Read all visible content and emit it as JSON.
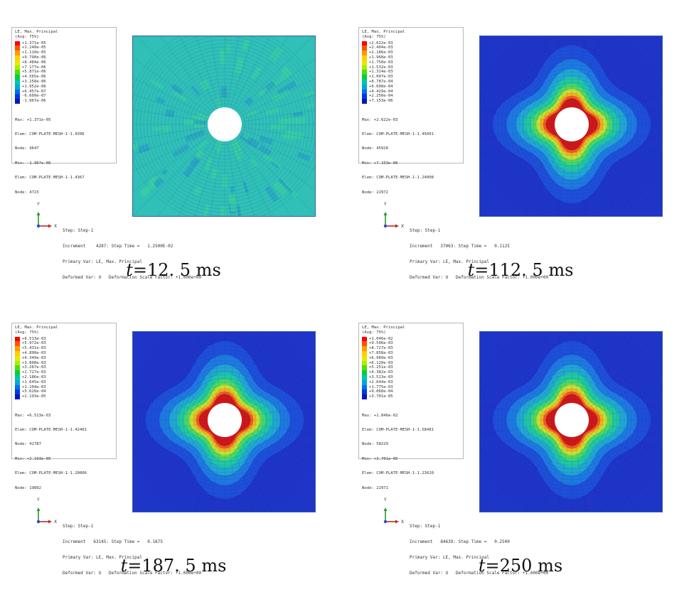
{
  "colors": {
    "scale": [
      "#ff0000",
      "#ff5200",
      "#ff9a00",
      "#ffd000",
      "#e8e800",
      "#a5f000",
      "#50e000",
      "#00d040",
      "#00c8a0",
      "#00a8d8",
      "#0070f0",
      "#0038e0",
      "#0018c0"
    ],
    "plate_deep_blue": "#1e35c8",
    "mesh_line": "#0b1a6e",
    "cyan_field": "#30c0b8"
  },
  "triad": {
    "y_label": "Y",
    "x_label": "X"
  },
  "panels": [
    {
      "legend_title": "LE, Max. Principal",
      "legend_avg": "(Avg: 75%)",
      "scale_labels": [
        "+1.371e-05",
        "+1.240e-05",
        "+1.110e-05",
        "+9.790e-06",
        "+8.484e-06",
        "+7.177e-06",
        "+5.871e-06",
        "+4.565e-06",
        "+3.258e-06",
        "+1.952e-06",
        "+6.457e-07",
        "-6.609e-07",
        "-1.967e-06"
      ],
      "max_line": "Max: +1.371e-05",
      "max_elem": "Elem: COM-PLATE-MESH-1-1.9396",
      "max_node": "Node: 9647",
      "min_line": "Min: -1.967e-06",
      "min_elem": "Elem: COM-PLATE-MESH-1-1.4367",
      "min_node": "Node: 4723",
      "step_line": "Step: Step-1",
      "increment_line": "Increment    4287: Step Time =   1.2500E-02",
      "primary_var": "Primary Var: LE, Max. Principal",
      "deformed_var": "Deformed Var: U   Deformation Scale Factor: +1.000e+00",
      "caption_t": "t",
      "caption_rest": "=12. 5 ms",
      "field": "cyan"
    },
    {
      "legend_title": "LE, Max. Principal",
      "legend_avg": "(Avg: 75%)",
      "scale_labels": [
        "+2.622e-03",
        "+2.404e-03",
        "+2.186e-03",
        "+1.968e-03",
        "+1.750e-03",
        "+1.532e-03",
        "+1.314e-03",
        "+1.097e-03",
        "+8.787e-04",
        "+6.608e-04",
        "+4.429e-04",
        "+2.250e-04",
        "+7.153e-06"
      ],
      "max_line": "Max: +2.622e-03",
      "max_elem": "Elem: COM-PLATE-MESH-1-1.45601",
      "max_node": "Node: 45928",
      "min_line": "Min: +7.153e-06",
      "min_elem": "Elem: COM-PLATE-MESH-1-1.24008",
      "min_node": "Node: 22972",
      "step_line": "Step: Step-1",
      "increment_line": "Increment   37063: Step Time =   0.1125",
      "primary_var": "Primary Var: LE, Max. Principal",
      "deformed_var": "Deformed Var: U   Deformation Scale Factor: +1.000e+00",
      "caption_t": "t",
      "caption_rest": "=112. 5 ms",
      "field": "hole"
    },
    {
      "legend_title": "LE, Max. Principal",
      "legend_avg": "(Avg: 75%)",
      "scale_labels": [
        "+6.513e-03",
        "+5.972e-03",
        "+5.431e-03",
        "+4.890e-03",
        "+4.349e-03",
        "+3.808e-03",
        "+3.267e-03",
        "+2.727e-03",
        "+2.186e-03",
        "+1.645e-03",
        "+1.104e-03",
        "+5.620e-04",
        "+2.193e-05"
      ],
      "max_line": "Max: +6.513e-03",
      "max_elem": "Elem: COM-PLATE-MESH-1-1.42401",
      "max_node": "Node: 42787",
      "min_line": "Min: +2.193e-05",
      "min_elem": "Elem: COM-PLATE-MESH-1-1.20806",
      "min_node": "Node: 19892",
      "step_line": "Step: Step-1",
      "increment_line": "Increment   63145: Step Time =   0.1875",
      "primary_var": "Primary Var: LE, Max. Principal",
      "deformed_var": "Deformed Var: U   Deformation Scale Factor: +1.000e+00",
      "caption_t": "t",
      "caption_rest": "=187. 5 ms",
      "field": "hole"
    },
    {
      "legend_title": "LE, Max. Principal",
      "legend_avg": "(Avg: 75%)",
      "scale_labels": [
        "+1.046e-02",
        "+9.596e-03",
        "+8.727e-03",
        "+7.858e-03",
        "+6.989e-03",
        "+6.120e-03",
        "+5.251e-03",
        "+4.382e-03",
        "+3.513e-03",
        "+2.644e-03",
        "+1.775e-03",
        "+9.060e-04",
        "+3.701e-05"
      ],
      "max_line": "Max: +1.046e-02",
      "max_elem": "Elem: COM-PLATE-MESH-1-1.58481",
      "max_node": "Node: 58229",
      "min_line": "Min: +3.701e-05",
      "min_elem": "Elem: COM-PLATE-MESH-1-1.23620",
      "min_node": "Node: 22971",
      "step_line": "Step: Step-1",
      "increment_line": "Increment   84639: Step Time =   0.2500",
      "primary_var": "Primary Var: LE, Max. Principal",
      "deformed_var": "Deformed Var: U   Deformation Scale Factor: +1.000e+00",
      "caption_t": "t",
      "caption_rest": "=250 ms",
      "field": "hole"
    }
  ]
}
